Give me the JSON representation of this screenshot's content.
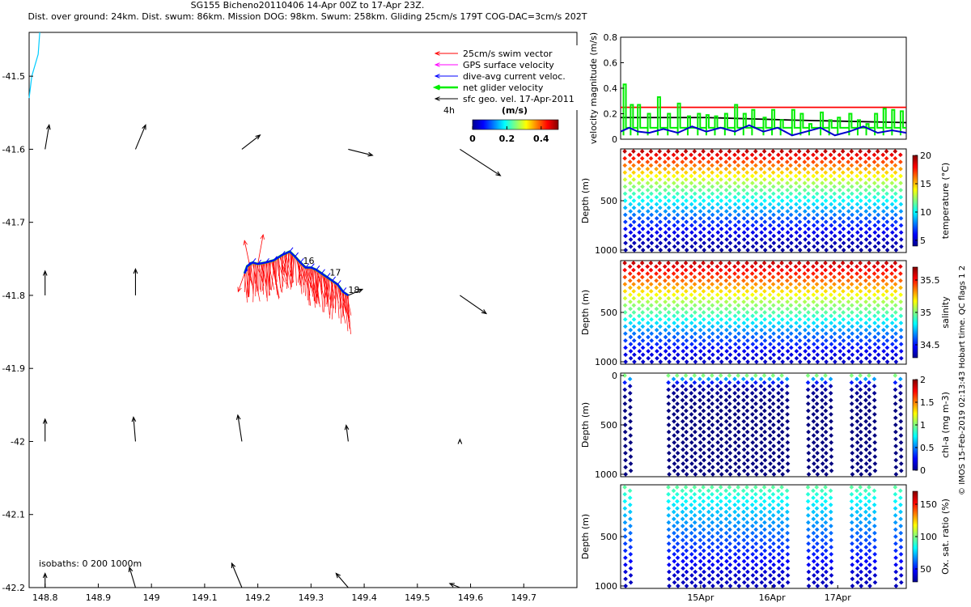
{
  "page": {
    "title_line1": "SG155 Bicheno20110406 14-Apr 00Z to 17-Apr 23Z.",
    "title_line2": "Dist. over ground: 24km. Dist. swum: 86km. Mission DOG: 98km. Swum: 258km. Gliding 25cm/s 179T COG-DAC=3cm/s 202T",
    "copyright": "© IMOS 15-Feb-2019 02:13:43 Hobart time. QC flags 1  2"
  },
  "chart_data": [
    {
      "id": "map",
      "type": "quiver",
      "xlim": [
        148.77,
        149.8
      ],
      "ylim": [
        -42.2,
        -41.44
      ],
      "x_ticks": [
        148.8,
        148.9,
        149,
        149.1,
        149.2,
        149.3,
        149.4,
        149.5,
        149.6,
        149.7
      ],
      "x_tick_labels": [
        "148.8",
        "148.9",
        "149",
        "149.1",
        "149.2",
        "149.3",
        "149.4",
        "149.5",
        "149.6",
        "149.7"
      ],
      "y_ticks": [
        -41.5,
        -41.6,
        -41.7,
        -41.8,
        -41.9,
        -42,
        -42.1,
        -42.2
      ],
      "y_tick_labels": [
        "-41.5",
        "-41.6",
        "-41.7",
        "-41.8",
        "-41.9",
        "-42",
        "-42.1",
        "-42.2"
      ],
      "legend": {
        "placement": "top-right",
        "items": [
          {
            "label": "25cm/s swim vector",
            "color": "#ff0000"
          },
          {
            "label": "GPS surface velocity",
            "color": "#ff00ff"
          },
          {
            "label": "dive-avg current veloc.",
            "color": "#0000ff"
          },
          {
            "label": "net glider velocity",
            "color": "#00ee00"
          },
          {
            "label": "sfc geo. vel. 17-Apr-2011",
            "color": "#000000"
          }
        ],
        "time_label": "4h"
      },
      "colorbar": {
        "title": "(m/s)",
        "ticks": [
          "0",
          "0.2",
          "0.4"
        ],
        "range": [
          0,
          0.5
        ]
      },
      "isobaths_label": "isobaths: 0   200  1000m",
      "day_labels": [
        {
          "text": "16",
          "lon": 149.285,
          "lat": -41.757
        },
        {
          "text": "17",
          "lon": 149.335,
          "lat": -41.773
        },
        {
          "text": "18",
          "lon": 149.37,
          "lat": -41.797
        }
      ],
      "coastline": [
        [
          148.79,
          -41.44
        ],
        [
          148.787,
          -41.47
        ],
        [
          148.775,
          -41.5
        ],
        [
          148.77,
          -41.53
        ]
      ],
      "track": [
        [
          149.175,
          -41.77
        ],
        [
          149.18,
          -41.76
        ],
        [
          149.19,
          -41.755
        ],
        [
          149.2,
          -41.757
        ],
        [
          149.215,
          -41.755
        ],
        [
          149.23,
          -41.752
        ],
        [
          149.245,
          -41.745
        ],
        [
          149.26,
          -41.74
        ],
        [
          149.27,
          -41.747
        ],
        [
          149.28,
          -41.755
        ],
        [
          149.29,
          -41.762
        ],
        [
          149.3,
          -41.762
        ],
        [
          149.31,
          -41.765
        ],
        [
          149.32,
          -41.77
        ],
        [
          149.33,
          -41.775
        ],
        [
          149.34,
          -41.78
        ],
        [
          149.35,
          -41.785
        ],
        [
          149.36,
          -41.795
        ],
        [
          149.37,
          -41.8
        ]
      ],
      "swim_vectors": {
        "count": 140,
        "lon_range": [
          149.175,
          149.37
        ],
        "lat_drop": [
          0.025,
          0.055
        ],
        "samples": [
          {
            "lon": 149.185,
            "lat": -41.76,
            "dlon": -0.01,
            "dlat": 0.035
          },
          {
            "lon": 149.2,
            "lat": -41.757,
            "dlon": 0.01,
            "dlat": 0.04
          },
          {
            "lon": 149.175,
            "lat": -41.77,
            "dlon": -0.012,
            "dlat": -0.025
          }
        ]
      },
      "geo_velocity_arrows": [
        {
          "lon": 148.8,
          "lat": -41.6,
          "u": 0.02,
          "v": 0.12
        },
        {
          "lon": 148.97,
          "lat": -41.6,
          "u": 0.05,
          "v": 0.12
        },
        {
          "lon": 149.17,
          "lat": -41.6,
          "u": 0.09,
          "v": 0.07
        },
        {
          "lon": 149.37,
          "lat": -41.6,
          "u": 0.12,
          "v": -0.03
        },
        {
          "lon": 149.58,
          "lat": -41.6,
          "u": 0.2,
          "v": -0.13
        },
        {
          "lon": 148.8,
          "lat": -41.8,
          "u": 0.0,
          "v": 0.12
        },
        {
          "lon": 148.97,
          "lat": -41.8,
          "u": 0.0,
          "v": 0.13
        },
        {
          "lon": 149.37,
          "lat": -41.8,
          "u": 0.07,
          "v": 0.03
        },
        {
          "lon": 149.58,
          "lat": -41.8,
          "u": 0.13,
          "v": -0.09
        },
        {
          "lon": 148.8,
          "lat": -42,
          "u": 0.0,
          "v": 0.11
        },
        {
          "lon": 148.97,
          "lat": -42,
          "u": -0.01,
          "v": 0.12
        },
        {
          "lon": 149.17,
          "lat": -42,
          "u": -0.02,
          "v": 0.13
        },
        {
          "lon": 149.37,
          "lat": -42,
          "u": -0.01,
          "v": 0.08
        },
        {
          "lon": 149.58,
          "lat": -42,
          "u": 0.0,
          "v": 0.01
        },
        {
          "lon": 148.8,
          "lat": -42.2,
          "u": 0.0,
          "v": 0.07
        },
        {
          "lon": 148.97,
          "lat": -42.2,
          "u": -0.03,
          "v": 0.1
        },
        {
          "lon": 149.17,
          "lat": -42.2,
          "u": -0.05,
          "v": 0.12
        },
        {
          "lon": 149.37,
          "lat": -42.2,
          "u": -0.06,
          "v": 0.07
        },
        {
          "lon": 149.58,
          "lat": -42.2,
          "u": -0.05,
          "v": 0.02
        }
      ]
    },
    {
      "id": "velocity",
      "type": "line",
      "ylabel": "velocity magnitude (m/s)",
      "ylim": [
        0,
        0.8
      ],
      "y_ticks": [
        0,
        0.2,
        0.4,
        0.6,
        0.8
      ],
      "y_tick_labels": [
        "0",
        "0.2",
        "0.4",
        "0.6",
        "0.8"
      ],
      "xlim": [
        0,
        1
      ],
      "series": [
        {
          "color": "#ff0000",
          "kind": "line",
          "x": [
            0,
            1
          ],
          "y": [
            0.25,
            0.25
          ]
        },
        {
          "color": "#000000",
          "kind": "line",
          "x": [
            0,
            0.3,
            0.6,
            1
          ],
          "y": [
            0.17,
            0.17,
            0.15,
            0.13
          ]
        },
        {
          "color": "#00ee00",
          "kind": "bars",
          "x": [
            0.01,
            0.035,
            0.06,
            0.095,
            0.13,
            0.165,
            0.2,
            0.235,
            0.27,
            0.3,
            0.33,
            0.365,
            0.4,
            0.43,
            0.46,
            0.5,
            0.53,
            0.56,
            0.6,
            0.63,
            0.66,
            0.7,
            0.73,
            0.76,
            0.8,
            0.83,
            0.86,
            0.89,
            0.92,
            0.95,
            0.98
          ],
          "y": [
            0.43,
            0.27,
            0.27,
            0.2,
            0.33,
            0.2,
            0.28,
            0.18,
            0.2,
            0.19,
            0.18,
            0.2,
            0.27,
            0.2,
            0.23,
            0.17,
            0.23,
            0.15,
            0.23,
            0.2,
            0.12,
            0.21,
            0.15,
            0.17,
            0.2,
            0.15,
            0.12,
            0.2,
            0.24,
            0.23,
            0.22
          ]
        },
        {
          "color": "#0000cc",
          "kind": "line",
          "x": [
            0,
            0.03,
            0.06,
            0.1,
            0.15,
            0.2,
            0.25,
            0.3,
            0.35,
            0.4,
            0.45,
            0.5,
            0.55,
            0.6,
            0.65,
            0.7,
            0.75,
            0.8,
            0.85,
            0.9,
            0.95,
            1
          ],
          "y": [
            0.06,
            0.09,
            0.06,
            0.05,
            0.08,
            0.05,
            0.1,
            0.06,
            0.09,
            0.06,
            0.11,
            0.06,
            0.09,
            0.03,
            0.06,
            0.09,
            0.03,
            0.06,
            0.1,
            0.05,
            0.07,
            0.05
          ]
        }
      ]
    },
    {
      "id": "temperature",
      "type": "scatter",
      "ylabel": "Depth (m)",
      "ylim": [
        0,
        1000
      ],
      "y_ticks": [
        500,
        1000
      ],
      "y_tick_labels": [
        "500",
        "1000"
      ],
      "n_profiles": 32,
      "profile_mask": "all",
      "colorbar": {
        "label": "temperature (°C)",
        "range": [
          4,
          20
        ],
        "ticks": [
          5,
          10,
          15,
          20
        ],
        "tick_labels": [
          "5",
          "10",
          "15",
          "20"
        ],
        "colormap": "jet"
      },
      "profile": {
        "depth": [
          0,
          100,
          200,
          300,
          400,
          500,
          600,
          700,
          800,
          900,
          1000
        ],
        "value": [
          19,
          17,
          15,
          13,
          11.5,
          10,
          8.5,
          7,
          6,
          5,
          4.5
        ]
      }
    },
    {
      "id": "salinity",
      "type": "scatter",
      "ylabel": "Depth (m)",
      "ylim": [
        0,
        1000
      ],
      "y_ticks": [
        500,
        1000
      ],
      "y_tick_labels": [
        "500",
        "1000"
      ],
      "n_profiles": 32,
      "profile_mask": "all",
      "colorbar": {
        "label": "salinity",
        "range": [
          34.3,
          35.7
        ],
        "ticks": [
          34.5,
          35,
          35.5
        ],
        "tick_labels": [
          "34.5",
          "35",
          "35.5"
        ],
        "colormap": "jet"
      },
      "profile": {
        "depth": [
          0,
          100,
          200,
          300,
          400,
          500,
          600,
          700,
          800,
          900,
          1000
        ],
        "value": [
          35.6,
          35.5,
          35.35,
          35.2,
          35.05,
          34.95,
          34.8,
          34.65,
          34.55,
          34.45,
          34.4
        ]
      }
    },
    {
      "id": "chla",
      "type": "scatter",
      "ylabel": "Depth (m)",
      "ylim": [
        0,
        1000
      ],
      "y_ticks": [
        0,
        500,
        1000
      ],
      "y_tick_labels": [
        "0",
        "500",
        "1000"
      ],
      "n_profiles": 32,
      "profile_mask": "sparse",
      "colorbar": {
        "label": "chl-a (mg m-3)",
        "range": [
          0,
          2
        ],
        "ticks": [
          0,
          0.5,
          1,
          1.5,
          2
        ],
        "tick_labels": [
          "0",
          "0.5",
          "1",
          "1.5",
          "2"
        ],
        "colormap": "jet"
      },
      "profile": {
        "depth": [
          0,
          30,
          100,
          200,
          300,
          500,
          700,
          1000
        ],
        "value": [
          1.0,
          0.6,
          0.1,
          0.02,
          0,
          0,
          0,
          0
        ]
      }
    },
    {
      "id": "oxygen",
      "type": "scatter",
      "ylabel": "Depth (m)",
      "ylim": [
        0,
        1000
      ],
      "y_ticks": [
        500,
        1000
      ],
      "y_tick_labels": [
        "500",
        "1000"
      ],
      "n_profiles": 32,
      "profile_mask": "sparse",
      "colorbar": {
        "label": "Ox. sat. ratio (%)",
        "range": [
          30,
          170
        ],
        "ticks": [
          50,
          100,
          150
        ],
        "tick_labels": [
          "50",
          "100",
          "150"
        ],
        "colormap": "jet"
      },
      "profile": {
        "depth": [
          0,
          100,
          200,
          300,
          400,
          500,
          600,
          700,
          800,
          900,
          1000
        ],
        "value": [
          95,
          85,
          78,
          72,
          66,
          60,
          55,
          50,
          45,
          40,
          38
        ]
      },
      "x_ticks": [
        "15Apr",
        "16Apr",
        "17Apr"
      ]
    }
  ]
}
